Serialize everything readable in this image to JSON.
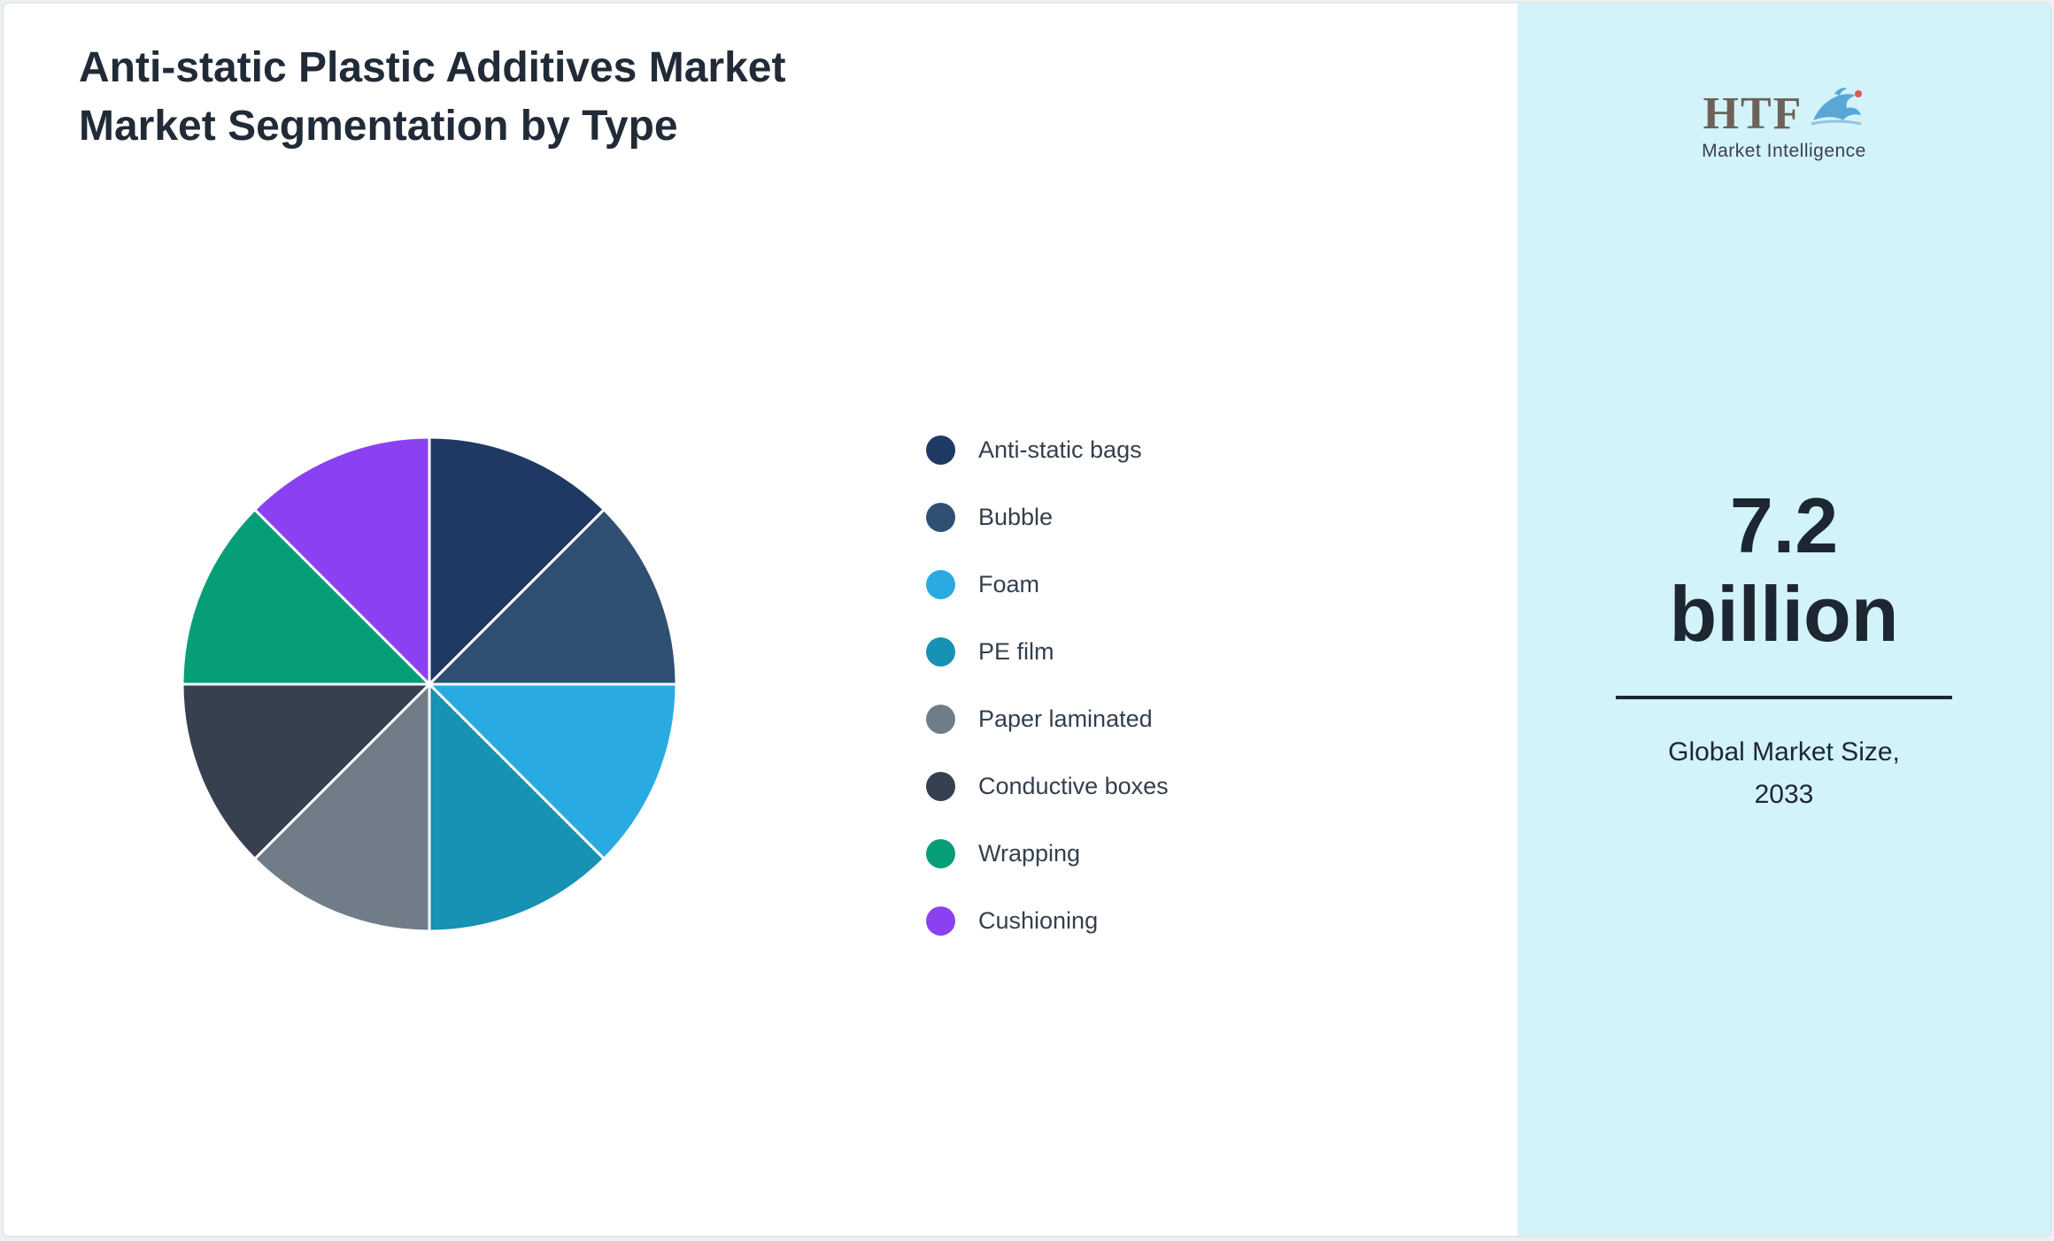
{
  "title": "Anti-static Plastic Additives Market Market Segmentation by Type",
  "chart_data": {
    "type": "pie",
    "title": "Anti-static Plastic Additives Market Market Segmentation by Type",
    "categories": [
      "Anti-static bags",
      "Bubble",
      "Foam",
      "PE film",
      "Paper laminated",
      "Conductive boxes",
      "Wrapping",
      "Cushioning"
    ],
    "values": [
      12.5,
      12.5,
      12.5,
      12.5,
      12.5,
      12.5,
      12.5,
      12.5
    ],
    "colors": [
      "#1F3864",
      "#2F5073",
      "#29ABE2",
      "#1791B4",
      "#707C87",
      "#37404F",
      "#069E77",
      "#8B41F1"
    ],
    "legend_position": "right",
    "start_angle_deg": -90,
    "direction": "clockwise"
  },
  "sidebar": {
    "logo_text": "HTF",
    "logo_subtext": "Market Intelligence",
    "market_size_value": "7.2",
    "market_size_unit": "billion",
    "caption_line1": "Global Market Size,",
    "caption_line2": "2033",
    "background_color": "#d3f3fa"
  }
}
